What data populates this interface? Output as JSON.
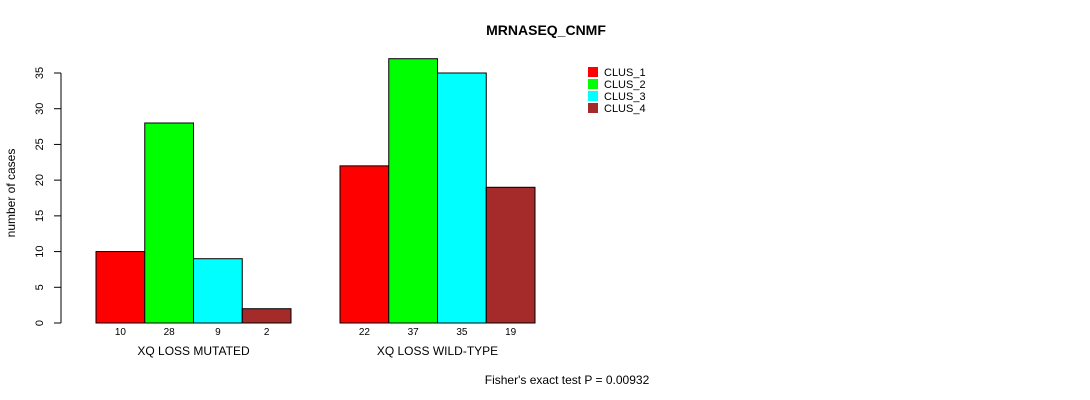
{
  "chart_data": {
    "type": "bar",
    "title": "MRNASEQ_CNMF",
    "ylabel": "number of cases",
    "xlabel": "",
    "ylim": [
      0,
      35
    ],
    "yticks": [
      0,
      5,
      10,
      15,
      20,
      25,
      30,
      35
    ],
    "categories": [
      "XQ LOSS MUTATED",
      "XQ LOSS WILD-TYPE"
    ],
    "series": [
      {
        "name": "CLUS_1",
        "color": "#ff0000",
        "values": [
          10,
          22
        ]
      },
      {
        "name": "CLUS_2",
        "color": "#00ff00",
        "values": [
          28,
          37
        ]
      },
      {
        "name": "CLUS_3",
        "color": "#00ffff",
        "values": [
          9,
          35
        ]
      },
      {
        "name": "CLUS_4",
        "color": "#a52a2a",
        "values": [
          2,
          19
        ]
      }
    ],
    "legend_position": "top-right",
    "annotation": "Fisher's exact test P = 0.00932"
  }
}
